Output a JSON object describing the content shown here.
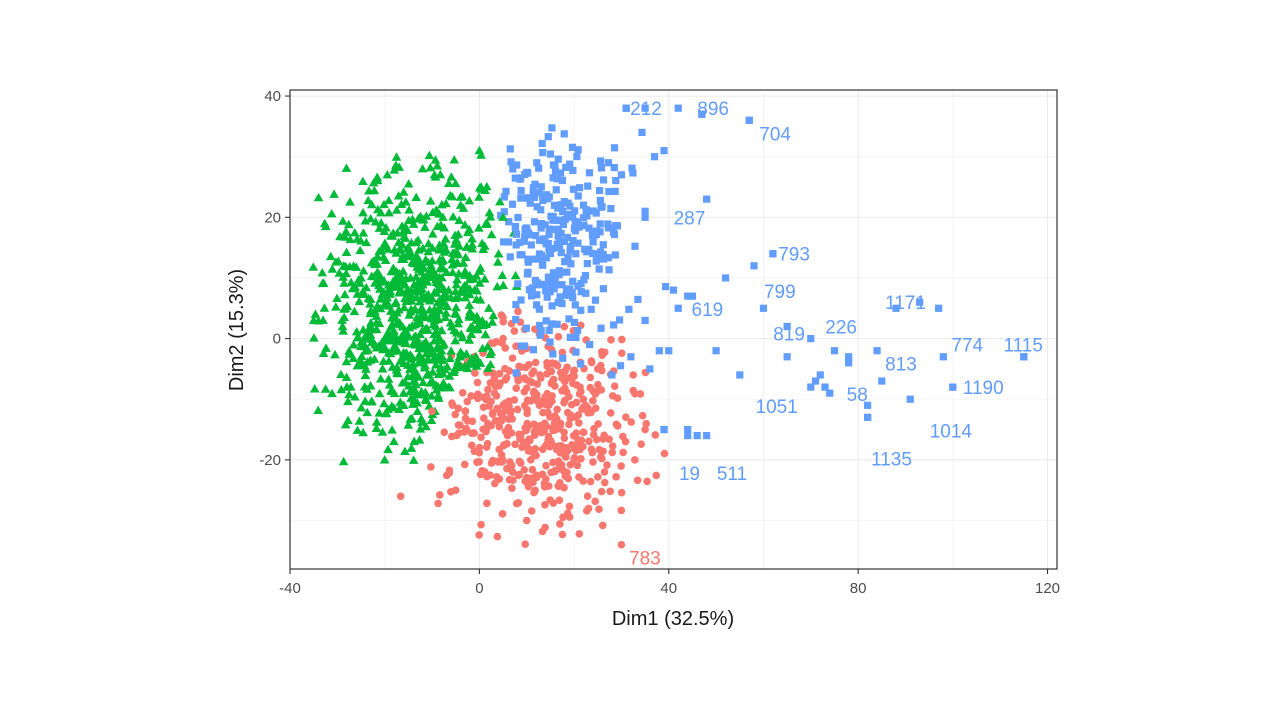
{
  "chart_data": {
    "type": "scatter",
    "title": "",
    "xlabel": "Dim1 (32.5%)",
    "ylabel": "Dim2 (15.3%)",
    "xlim": [
      -40,
      122
    ],
    "ylim": [
      -38,
      41
    ],
    "x_ticks": [
      "-40",
      "0",
      "40",
      "80",
      "120"
    ],
    "y_ticks": [
      "40",
      "20",
      "0",
      "-20"
    ],
    "grid": true,
    "legend": "none",
    "colors": {
      "cluster1": "#F8766D",
      "cluster2": "#00BA38",
      "cluster3": "#619CFF"
    },
    "series": [
      {
        "color": "#F8766D",
        "marker": "circle",
        "points_sample": [
          [
            30,
            -34
          ],
          [
            10,
            -30
          ],
          [
            -5,
            -25
          ],
          [
            20,
            -20
          ],
          [
            35,
            -15
          ],
          [
            25,
            -5
          ],
          [
            5,
            0
          ],
          [
            15,
            -10
          ],
          [
            -10,
            -12
          ],
          [
            0,
            -18
          ]
        ]
      },
      {
        "color": "#00BA38",
        "marker": "triangle",
        "points_sample": [
          [
            -35,
            3
          ],
          [
            -25,
            10
          ],
          [
            -12,
            28
          ],
          [
            0,
            31
          ],
          [
            5,
            20
          ],
          [
            -20,
            -20
          ],
          [
            -8,
            -2
          ],
          [
            -28,
            -8
          ],
          [
            -15,
            15
          ],
          [
            2,
            5
          ]
        ]
      },
      {
        "color": "#619CFF",
        "marker": "square",
        "points_sample": [
          [
            31,
            38
          ],
          [
            47,
            37
          ],
          [
            57,
            36
          ],
          [
            35,
            20
          ],
          [
            62,
            14
          ],
          [
            115,
            -3
          ],
          [
            100,
            -8
          ],
          [
            82,
            -13
          ],
          [
            44,
            -16
          ],
          [
            39,
            -15
          ]
        ]
      }
    ],
    "labeled_points": [
      {
        "label": "783",
        "x": 29.5,
        "y": -34,
        "color": "#F8766D"
      },
      {
        "label": "212",
        "x": 31,
        "y": 38,
        "color": "#619CFF"
      },
      {
        "label": "896",
        "x": 38,
        "y": 38,
        "color": "#619CFF"
      },
      {
        "label": "704",
        "x": 57,
        "y": 36,
        "color": "#619CFF"
      },
      {
        "label": "287",
        "x": 33,
        "y": 20,
        "color": "#619CFF"
      },
      {
        "label": "793",
        "x": 61,
        "y": 14,
        "color": "#619CFF"
      },
      {
        "label": "799",
        "x": 58,
        "y": 10,
        "color": "#619CFF"
      },
      {
        "label": "619",
        "x": 41,
        "y": 7,
        "color": "#619CFF"
      },
      {
        "label": "819",
        "x": 61,
        "y": 3,
        "color": "#619CFF"
      },
      {
        "label": "226",
        "x": 72,
        "y": 2,
        "color": "#619CFF"
      },
      {
        "label": "1171",
        "x": 84,
        "y": 6,
        "color": "#619CFF"
      },
      {
        "label": "813",
        "x": 84,
        "y": -2,
        "color": "#619CFF"
      },
      {
        "label": "774",
        "x": 98,
        "y": -1,
        "color": "#619CFF"
      },
      {
        "label": "1115",
        "x": 109,
        "y": -1,
        "color": "#619CFF"
      },
      {
        "label": "1190",
        "x": 100,
        "y": -7,
        "color": "#619CFF"
      },
      {
        "label": "1051",
        "x": 71,
        "y": -9,
        "color": "#619CFF"
      },
      {
        "label": "58",
        "x": 78,
        "y": -7,
        "color": "#619CFF"
      },
      {
        "label": "1014",
        "x": 93,
        "y": -13,
        "color": "#619CFF"
      },
      {
        "label": "1135",
        "x": 84,
        "y": -16,
        "color": "#619CFF"
      },
      {
        "label": "19",
        "x": 43,
        "y": -20,
        "color": "#619CFF"
      },
      {
        "label": "511",
        "x": 51,
        "y": -20,
        "color": "#619CFF"
      }
    ]
  }
}
